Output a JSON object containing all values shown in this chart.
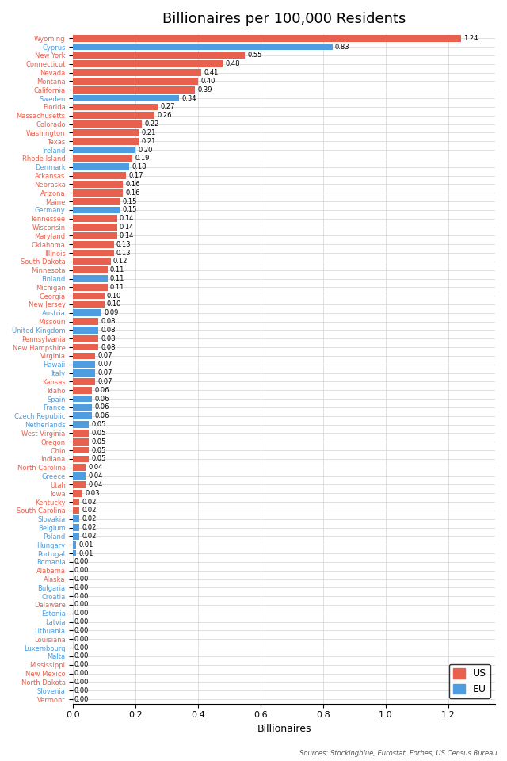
{
  "title": "Billionaires per 100,000 Residents",
  "xlabel": "Billionaires",
  "source": "Sources: Stockingblue, Eurostat, Forbes, US Census Bureau",
  "entries": [
    {
      "name": "Wyoming",
      "value": 1.24,
      "type": "US"
    },
    {
      "name": "Cyprus",
      "value": 0.83,
      "type": "EU"
    },
    {
      "name": "New York",
      "value": 0.55,
      "type": "US"
    },
    {
      "name": "Connecticut",
      "value": 0.48,
      "type": "US"
    },
    {
      "name": "Nevada",
      "value": 0.41,
      "type": "US"
    },
    {
      "name": "Montana",
      "value": 0.4,
      "type": "US"
    },
    {
      "name": "California",
      "value": 0.39,
      "type": "US"
    },
    {
      "name": "Sweden",
      "value": 0.34,
      "type": "EU"
    },
    {
      "name": "Florida",
      "value": 0.27,
      "type": "US"
    },
    {
      "name": "Massachusetts",
      "value": 0.26,
      "type": "US"
    },
    {
      "name": "Colorado",
      "value": 0.22,
      "type": "US"
    },
    {
      "name": "Washington",
      "value": 0.21,
      "type": "US"
    },
    {
      "name": "Texas",
      "value": 0.21,
      "type": "US"
    },
    {
      "name": "Ireland",
      "value": 0.2,
      "type": "EU"
    },
    {
      "name": "Rhode Island",
      "value": 0.19,
      "type": "US"
    },
    {
      "name": "Denmark",
      "value": 0.18,
      "type": "EU"
    },
    {
      "name": "Arkansas",
      "value": 0.17,
      "type": "US"
    },
    {
      "name": "Nebraska",
      "value": 0.16,
      "type": "US"
    },
    {
      "name": "Arizona",
      "value": 0.16,
      "type": "US"
    },
    {
      "name": "Maine",
      "value": 0.15,
      "type": "US"
    },
    {
      "name": "Germany",
      "value": 0.15,
      "type": "EU"
    },
    {
      "name": "Tennessee",
      "value": 0.14,
      "type": "US"
    },
    {
      "name": "Wisconsin",
      "value": 0.14,
      "type": "US"
    },
    {
      "name": "Maryland",
      "value": 0.14,
      "type": "US"
    },
    {
      "name": "Oklahoma",
      "value": 0.13,
      "type": "US"
    },
    {
      "name": "Illinois",
      "value": 0.13,
      "type": "US"
    },
    {
      "name": "South Dakota",
      "value": 0.12,
      "type": "US"
    },
    {
      "name": "Minnesota",
      "value": 0.11,
      "type": "US"
    },
    {
      "name": "Finland",
      "value": 0.11,
      "type": "EU"
    },
    {
      "name": "Michigan",
      "value": 0.11,
      "type": "US"
    },
    {
      "name": "Georgia",
      "value": 0.1,
      "type": "US"
    },
    {
      "name": "New Jersey",
      "value": 0.1,
      "type": "US"
    },
    {
      "name": "Austria",
      "value": 0.09,
      "type": "EU"
    },
    {
      "name": "Missouri",
      "value": 0.08,
      "type": "US"
    },
    {
      "name": "United Kingdom",
      "value": 0.08,
      "type": "EU"
    },
    {
      "name": "Pennsylvania",
      "value": 0.08,
      "type": "US"
    },
    {
      "name": "New Hampshire",
      "value": 0.08,
      "type": "US"
    },
    {
      "name": "Virginia",
      "value": 0.07,
      "type": "US"
    },
    {
      "name": "Hawaii",
      "value": 0.07,
      "type": "EU"
    },
    {
      "name": "Italy",
      "value": 0.07,
      "type": "EU"
    },
    {
      "name": "Kansas",
      "value": 0.07,
      "type": "US"
    },
    {
      "name": "Idaho",
      "value": 0.06,
      "type": "US"
    },
    {
      "name": "Spain",
      "value": 0.06,
      "type": "EU"
    },
    {
      "name": "France",
      "value": 0.06,
      "type": "EU"
    },
    {
      "name": "Czech Republic",
      "value": 0.06,
      "type": "EU"
    },
    {
      "name": "Netherlands",
      "value": 0.05,
      "type": "EU"
    },
    {
      "name": "West Virginia",
      "value": 0.05,
      "type": "US"
    },
    {
      "name": "Oregon",
      "value": 0.05,
      "type": "US"
    },
    {
      "name": "Ohio",
      "value": 0.05,
      "type": "US"
    },
    {
      "name": "Indiana",
      "value": 0.05,
      "type": "US"
    },
    {
      "name": "North Carolina",
      "value": 0.04,
      "type": "US"
    },
    {
      "name": "Greece",
      "value": 0.04,
      "type": "EU"
    },
    {
      "name": "Utah",
      "value": 0.04,
      "type": "US"
    },
    {
      "name": "Iowa",
      "value": 0.03,
      "type": "US"
    },
    {
      "name": "Kentucky",
      "value": 0.02,
      "type": "US"
    },
    {
      "name": "South Carolina",
      "value": 0.02,
      "type": "US"
    },
    {
      "name": "Slovakia",
      "value": 0.02,
      "type": "EU"
    },
    {
      "name": "Belgium",
      "value": 0.02,
      "type": "EU"
    },
    {
      "name": "Poland",
      "value": 0.02,
      "type": "EU"
    },
    {
      "name": "Hungary",
      "value": 0.01,
      "type": "EU"
    },
    {
      "name": "Portugal",
      "value": 0.01,
      "type": "EU"
    },
    {
      "name": "Romania",
      "value": 0.0,
      "type": "EU"
    },
    {
      "name": "Alabama",
      "value": 0.0,
      "type": "US"
    },
    {
      "name": "Alaska",
      "value": 0.0,
      "type": "US"
    },
    {
      "name": "Bulgaria",
      "value": 0.0,
      "type": "EU"
    },
    {
      "name": "Croatia",
      "value": 0.0,
      "type": "EU"
    },
    {
      "name": "Delaware",
      "value": 0.0,
      "type": "US"
    },
    {
      "name": "Estonia",
      "value": 0.0,
      "type": "EU"
    },
    {
      "name": "Latvia",
      "value": 0.0,
      "type": "EU"
    },
    {
      "name": "Lithuania",
      "value": 0.0,
      "type": "EU"
    },
    {
      "name": "Louisiana",
      "value": 0.0,
      "type": "US"
    },
    {
      "name": "Luxembourg",
      "value": 0.0,
      "type": "EU"
    },
    {
      "name": "Malta",
      "value": 0.0,
      "type": "EU"
    },
    {
      "name": "Mississippi",
      "value": 0.0,
      "type": "US"
    },
    {
      "name": "New Mexico",
      "value": 0.0,
      "type": "US"
    },
    {
      "name": "North Dakota",
      "value": 0.0,
      "type": "US"
    },
    {
      "name": "Slovenia",
      "value": 0.0,
      "type": "EU"
    },
    {
      "name": "Vermont",
      "value": 0.0,
      "type": "US"
    }
  ],
  "color_US": "#E8614E",
  "color_EU": "#4D9DE0",
  "color_label_US": "#E8614E",
  "color_label_EU": "#4D9DE0",
  "xlim": [
    0,
    1.35
  ],
  "bar_height": 0.8,
  "value_fontsize": 6.0,
  "label_fontsize": 6.0,
  "title_fontsize": 13
}
